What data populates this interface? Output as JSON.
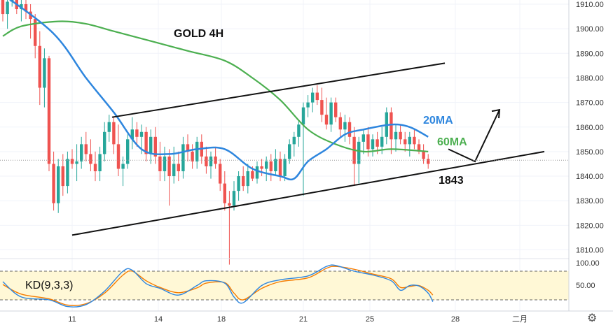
{
  "chart_data": {
    "type": "candlestick",
    "title": "GOLD 4H",
    "colors": {
      "up": "#26a69a",
      "down": "#ef5350",
      "ma20": "#2e86de",
      "ma60": "#4caf50",
      "kd_k": "#2e86de",
      "kd_d": "#f57c00",
      "kd_band": "#fff8d6"
    },
    "price_axis": {
      "min": 1802,
      "max": 1914,
      "ticks": [
        "1910.00",
        "1900.00",
        "1890.00",
        "1880.00",
        "1870.00",
        "1860.00",
        "1850.00",
        "1840.00",
        "1830.00",
        "1820.00",
        "1810.00"
      ]
    },
    "time_axis": {
      "labels": [
        "11",
        "14",
        "18",
        "21",
        "25",
        "28",
        "二月"
      ]
    },
    "ohlc": [
      [
        1913,
        1915,
        1903,
        1906
      ],
      [
        1906,
        1914,
        1900,
        1911
      ],
      [
        1911,
        1916,
        1909,
        1912
      ],
      [
        1912,
        1915,
        1906,
        1908
      ],
      [
        1908,
        1913,
        1903,
        1910
      ],
      [
        1910,
        1914,
        1904,
        1907
      ],
      [
        1907,
        1910,
        1896,
        1904
      ],
      [
        1904,
        1906,
        1888,
        1893
      ],
      [
        1893,
        1899,
        1869,
        1876
      ],
      [
        1876,
        1892,
        1868,
        1888
      ],
      [
        1888,
        1889,
        1842,
        1845
      ],
      [
        1845,
        1850,
        1826,
        1829
      ],
      [
        1829,
        1847,
        1825,
        1844
      ],
      [
        1844,
        1849,
        1832,
        1836
      ],
      [
        1836,
        1850,
        1833,
        1847
      ],
      [
        1847,
        1851,
        1843,
        1845
      ],
      [
        1845,
        1853,
        1838,
        1846
      ],
      [
        1846,
        1856,
        1843,
        1853
      ],
      [
        1853,
        1858,
        1846,
        1849
      ],
      [
        1849,
        1855,
        1842,
        1845
      ],
      [
        1845,
        1850,
        1838,
        1842
      ],
      [
        1842,
        1852,
        1838,
        1849
      ],
      [
        1849,
        1862,
        1846,
        1858
      ],
      [
        1858,
        1865,
        1854,
        1862
      ],
      [
        1862,
        1864,
        1849,
        1853
      ],
      [
        1853,
        1861,
        1840,
        1843
      ],
      [
        1843,
        1848,
        1836,
        1845
      ],
      [
        1845,
        1857,
        1843,
        1855
      ],
      [
        1855,
        1864,
        1851,
        1859
      ],
      [
        1859,
        1862,
        1852,
        1856
      ],
      [
        1856,
        1861,
        1849,
        1858
      ],
      [
        1858,
        1860,
        1846,
        1849
      ],
      [
        1849,
        1859,
        1845,
        1856
      ],
      [
        1856,
        1860,
        1845,
        1848
      ],
      [
        1848,
        1854,
        1838,
        1842
      ],
      [
        1842,
        1852,
        1838,
        1848
      ],
      [
        1848,
        1851,
        1828,
        1840
      ],
      [
        1840,
        1852,
        1837,
        1845
      ],
      [
        1845,
        1850,
        1838,
        1842
      ],
      [
        1842,
        1856,
        1839,
        1853
      ],
      [
        1853,
        1857,
        1846,
        1850
      ],
      [
        1850,
        1853,
        1843,
        1846
      ],
      [
        1846,
        1856,
        1843,
        1854
      ],
      [
        1854,
        1857,
        1845,
        1848
      ],
      [
        1848,
        1852,
        1841,
        1844
      ],
      [
        1844,
        1850,
        1839,
        1848
      ],
      [
        1848,
        1852,
        1843,
        1845
      ],
      [
        1845,
        1847,
        1834,
        1837
      ],
      [
        1837,
        1842,
        1826,
        1829
      ],
      [
        1829,
        1834,
        1804,
        1828
      ],
      [
        1828,
        1838,
        1826,
        1834
      ],
      [
        1834,
        1842,
        1830,
        1840
      ],
      [
        1840,
        1844,
        1834,
        1836
      ],
      [
        1836,
        1845,
        1833,
        1842
      ],
      [
        1842,
        1844,
        1838,
        1839
      ],
      [
        1839,
        1846,
        1837,
        1844
      ],
      [
        1844,
        1847,
        1840,
        1843
      ],
      [
        1843,
        1848,
        1838,
        1846
      ],
      [
        1846,
        1849,
        1838,
        1842
      ],
      [
        1842,
        1851,
        1840,
        1847
      ],
      [
        1847,
        1850,
        1838,
        1840
      ],
      [
        1840,
        1849,
        1838,
        1847
      ],
      [
        1847,
        1855,
        1845,
        1853
      ],
      [
        1853,
        1858,
        1848,
        1856
      ],
      [
        1856,
        1863,
        1852,
        1861
      ],
      [
        1861,
        1870,
        1832,
        1868
      ],
      [
        1868,
        1873,
        1864,
        1870
      ],
      [
        1870,
        1876,
        1866,
        1874
      ],
      [
        1874,
        1877,
        1869,
        1871
      ],
      [
        1871,
        1876,
        1862,
        1865
      ],
      [
        1865,
        1872,
        1859,
        1861
      ],
      [
        1861,
        1872,
        1858,
        1870
      ],
      [
        1870,
        1872,
        1862,
        1864
      ],
      [
        1864,
        1866,
        1856,
        1859
      ],
      [
        1859,
        1865,
        1854,
        1862
      ],
      [
        1862,
        1864,
        1853,
        1856
      ],
      [
        1856,
        1860,
        1836,
        1845
      ],
      [
        1845,
        1856,
        1837,
        1854
      ],
      [
        1854,
        1859,
        1849,
        1857
      ],
      [
        1857,
        1860,
        1848,
        1851
      ],
      [
        1851,
        1857,
        1848,
        1855
      ],
      [
        1855,
        1858,
        1849,
        1852
      ],
      [
        1852,
        1860,
        1849,
        1856
      ],
      [
        1856,
        1868,
        1853,
        1866
      ],
      [
        1866,
        1868,
        1849,
        1855
      ],
      [
        1855,
        1861,
        1850,
        1858
      ],
      [
        1858,
        1861,
        1853,
        1855
      ],
      [
        1855,
        1858,
        1850,
        1853
      ],
      [
        1853,
        1858,
        1848,
        1856
      ],
      [
        1856,
        1859,
        1851,
        1853
      ],
      [
        1853,
        1855,
        1849,
        1850
      ],
      [
        1850,
        1853,
        1845,
        1847
      ],
      [
        1847,
        1849,
        1843,
        1845
      ]
    ],
    "ma20": [
      [
        0,
        1914
      ],
      [
        11,
        1898
      ],
      [
        18,
        1880
      ],
      [
        24,
        1866
      ],
      [
        30,
        1851
      ],
      [
        36,
        1849
      ],
      [
        42,
        1851
      ],
      [
        48,
        1851
      ],
      [
        54,
        1843
      ],
      [
        60,
        1840
      ],
      [
        63,
        1839
      ],
      [
        66,
        1846
      ],
      [
        70,
        1851
      ],
      [
        74,
        1857
      ],
      [
        78,
        1859
      ],
      [
        84,
        1861
      ],
      [
        88,
        1860
      ],
      [
        92,
        1856
      ]
    ],
    "ma60": [
      [
        0,
        1897
      ],
      [
        4,
        1901
      ],
      [
        12,
        1903
      ],
      [
        18,
        1902
      ],
      [
        24,
        1899
      ],
      [
        32,
        1895
      ],
      [
        40,
        1891
      ],
      [
        48,
        1887
      ],
      [
        54,
        1880
      ],
      [
        60,
        1871
      ],
      [
        66,
        1859
      ],
      [
        72,
        1853
      ],
      [
        78,
        1850
      ],
      [
        84,
        1851
      ],
      [
        92,
        1850
      ]
    ],
    "channel": {
      "upper": [
        [
          1822,
          1864
        ],
        [
          1840,
          1886
        ]
      ],
      "lower": [
        [
          1840,
          1816
        ],
        [
          1888,
          1850
        ]
      ]
    },
    "projection": [
      [
        1850,
        1852
      ],
      [
        1865,
        1847
      ],
      [
        1879,
        1866
      ]
    ],
    "annotations": {
      "title": "GOLD 4H",
      "ma20_label": "20MA",
      "ma60_label": "60MA",
      "support_label": "1843"
    },
    "indicator": {
      "label": "KD(9,3,3)",
      "axis_ticks": [
        "100.00",
        "50.00"
      ],
      "levels": [
        80,
        20
      ],
      "k": [
        [
          0,
          58
        ],
        [
          4,
          26
        ],
        [
          10,
          20
        ],
        [
          14,
          6
        ],
        [
          18,
          10
        ],
        [
          22,
          38
        ],
        [
          26,
          80
        ],
        [
          28,
          82
        ],
        [
          31,
          54
        ],
        [
          34,
          44
        ],
        [
          38,
          30
        ],
        [
          42,
          50
        ],
        [
          44,
          60
        ],
        [
          48,
          55
        ],
        [
          50,
          26
        ],
        [
          52,
          14
        ],
        [
          56,
          50
        ],
        [
          60,
          62
        ],
        [
          66,
          70
        ],
        [
          70,
          90
        ],
        [
          72,
          92
        ],
        [
          76,
          80
        ],
        [
          80,
          72
        ],
        [
          84,
          60
        ],
        [
          86,
          40
        ],
        [
          88,
          50
        ],
        [
          90,
          49
        ],
        [
          92,
          34
        ],
        [
          93,
          16
        ]
      ],
      "d": [
        [
          0,
          52
        ],
        [
          4,
          32
        ],
        [
          10,
          22
        ],
        [
          14,
          9
        ],
        [
          18,
          12
        ],
        [
          22,
          34
        ],
        [
          26,
          72
        ],
        [
          28,
          80
        ],
        [
          31,
          60
        ],
        [
          34,
          46
        ],
        [
          38,
          35
        ],
        [
          42,
          45
        ],
        [
          44,
          55
        ],
        [
          48,
          56
        ],
        [
          50,
          34
        ],
        [
          52,
          20
        ],
        [
          56,
          44
        ],
        [
          60,
          58
        ],
        [
          66,
          66
        ],
        [
          70,
          86
        ],
        [
          72,
          90
        ],
        [
          76,
          84
        ],
        [
          80,
          74
        ],
        [
          84,
          64
        ],
        [
          86,
          46
        ],
        [
          88,
          48
        ],
        [
          90,
          50
        ],
        [
          92,
          40
        ],
        [
          93,
          30
        ]
      ]
    }
  }
}
